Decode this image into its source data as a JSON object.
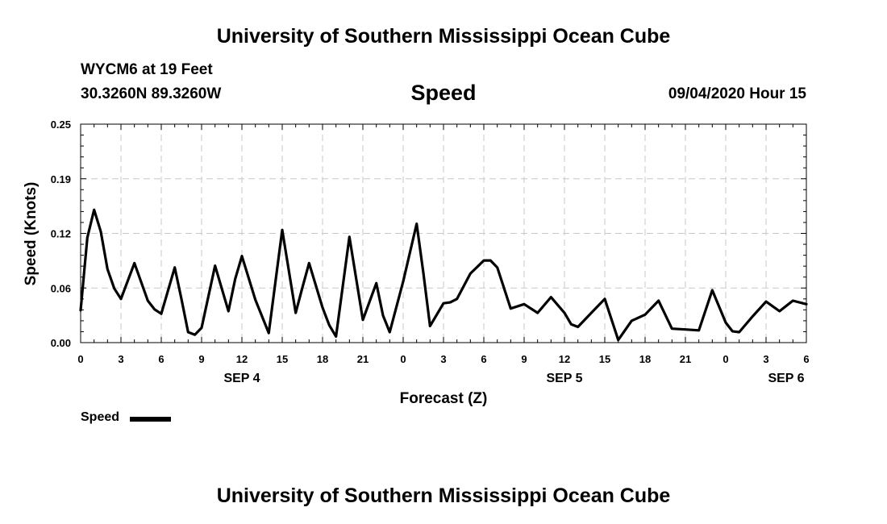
{
  "header": {
    "title": "University of Southern Mississippi Ocean Cube",
    "station": "WYCM6 at 19 Feet",
    "coordinates": "30.3260N 89.3260W",
    "parameter": "Speed",
    "datetime": "09/04/2020 Hour 15"
  },
  "footer": {
    "title": "University of Southern Mississippi Ocean Cube"
  },
  "legend": {
    "label": "Speed"
  },
  "chart_data": {
    "type": "line",
    "title": "Speed",
    "xlabel": "Forecast (Z)",
    "ylabel": "Speed (Knots)",
    "ylim": [
      0,
      0.25
    ],
    "xlim": [
      0,
      54
    ],
    "y_ticks": [
      {
        "value": 0,
        "label": "0.00"
      },
      {
        "value": 0.0625,
        "label": "0.06"
      },
      {
        "value": 0.125,
        "label": "0.12"
      },
      {
        "value": 0.1875,
        "label": "0.19"
      },
      {
        "value": 0.25,
        "label": "0.25"
      }
    ],
    "x_ticks": [
      {
        "value": 0,
        "label": "0"
      },
      {
        "value": 3,
        "label": "3"
      },
      {
        "value": 6,
        "label": "6"
      },
      {
        "value": 9,
        "label": "9"
      },
      {
        "value": 12,
        "label": "12"
      },
      {
        "value": 15,
        "label": "15"
      },
      {
        "value": 18,
        "label": "18"
      },
      {
        "value": 21,
        "label": "21"
      },
      {
        "value": 24,
        "label": "0"
      },
      {
        "value": 27,
        "label": "3"
      },
      {
        "value": 30,
        "label": "6"
      },
      {
        "value": 33,
        "label": "9"
      },
      {
        "value": 36,
        "label": "12"
      },
      {
        "value": 39,
        "label": "15"
      },
      {
        "value": 42,
        "label": "18"
      },
      {
        "value": 45,
        "label": "21"
      },
      {
        "value": 48,
        "label": "0"
      },
      {
        "value": 51,
        "label": "3"
      },
      {
        "value": 54,
        "label": "6"
      }
    ],
    "date_labels": [
      {
        "value": 12,
        "label": "SEP 4"
      },
      {
        "value": 36,
        "label": "SEP 5"
      },
      {
        "value": 52.5,
        "label": "SEP 6"
      }
    ],
    "grid": true,
    "line_color": "#000000",
    "series": [
      {
        "name": "Speed",
        "x": [
          0,
          0.5,
          1,
          1.5,
          2,
          2.5,
          3,
          4,
          5,
          5.5,
          6,
          7,
          7.5,
          8,
          8.5,
          9,
          10,
          11,
          11.5,
          12,
          13,
          14,
          15,
          16,
          16.5,
          17,
          18,
          18.5,
          19,
          20,
          21,
          22,
          22.5,
          23,
          24,
          25,
          25.5,
          26,
          27,
          27.5,
          28,
          29,
          30,
          30.5,
          31,
          32,
          33,
          34,
          35,
          36,
          36.5,
          37,
          38,
          39,
          40,
          41,
          42,
          43,
          44,
          45,
          46,
          47,
          48,
          48.5,
          49,
          50,
          51,
          52,
          53,
          54
        ],
        "values": [
          0.037,
          0.12,
          0.152,
          0.127,
          0.084,
          0.062,
          0.05,
          0.091,
          0.048,
          0.038,
          0.033,
          0.086,
          0.05,
          0.012,
          0.009,
          0.017,
          0.088,
          0.036,
          0.073,
          0.099,
          0.049,
          0.011,
          0.129,
          0.034,
          0.063,
          0.091,
          0.04,
          0.02,
          0.007,
          0.121,
          0.026,
          0.068,
          0.031,
          0.012,
          0.07,
          0.136,
          0.08,
          0.019,
          0.045,
          0.046,
          0.05,
          0.079,
          0.094,
          0.094,
          0.086,
          0.039,
          0.044,
          0.034,
          0.052,
          0.034,
          0.021,
          0.018,
          0.034,
          0.05,
          0.003,
          0.025,
          0.032,
          0.048,
          0.016,
          0.015,
          0.014,
          0.06,
          0.023,
          0.013,
          0.012,
          0.03,
          0.047,
          0.036,
          0.048,
          0.044
        ]
      }
    ]
  }
}
